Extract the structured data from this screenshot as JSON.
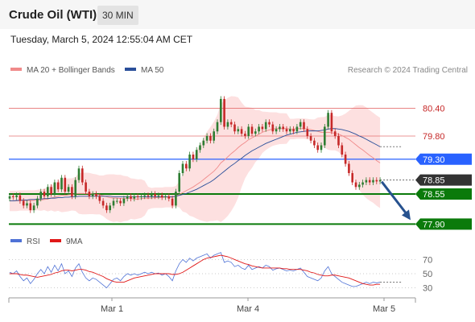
{
  "header": {
    "title": "Crude Oil (WTI)",
    "timeframe": "30 MIN"
  },
  "datetime": "Tuesday, March 5, 2024 12:55:04 AM CET",
  "legend": {
    "ma20_label": "MA 20 + Bollinger Bands",
    "ma50_label": "MA 50",
    "copyright": "Research © 2024 Trading Central",
    "ma20_color": "#f08a8a",
    "ma50_color": "#2a4f9a"
  },
  "rsi_legend": {
    "rsi_label": "RSI",
    "ma9_label": "9MA",
    "rsi_color": "#4f72d6",
    "ma9_color": "#e01818"
  },
  "colors": {
    "up": "#2e7d32",
    "down": "#c62828",
    "band": "#fde0e0",
    "resistance": "#e57373",
    "pivot": "#2962ff",
    "support": "#0b7a0b",
    "current": "#333333",
    "arrow": "#27528f"
  },
  "chart_data": {
    "type": "candlestick",
    "y_range": [
      77.75,
      81.05
    ],
    "x_labels": [
      "Mar 1",
      "Mar 4",
      "Mar 5"
    ],
    "levels": [
      {
        "value": 80.4,
        "label": "80.40",
        "kind": "resistance"
      },
      {
        "value": 79.8,
        "label": "79.80",
        "kind": "resistance"
      },
      {
        "value": 79.3,
        "label": "79.30",
        "kind": "pivot"
      },
      {
        "value": 78.85,
        "label": "78.85",
        "kind": "current"
      },
      {
        "value": 78.55,
        "label": "78.55",
        "kind": "support"
      },
      {
        "value": 77.9,
        "label": "77.90",
        "kind": "support"
      }
    ],
    "forecast": {
      "from": 78.85,
      "to": 77.9
    },
    "closes": [
      78.5,
      78.48,
      78.52,
      78.4,
      78.3,
      78.35,
      78.2,
      78.3,
      78.45,
      78.6,
      78.5,
      78.7,
      78.55,
      78.8,
      78.65,
      78.9,
      78.6,
      78.7,
      78.5,
      78.85,
      79.1,
      78.8,
      78.6,
      78.5,
      78.55,
      78.5,
      78.4,
      78.3,
      78.2,
      78.3,
      78.4,
      78.4,
      78.35,
      78.45,
      78.5,
      78.45,
      78.5,
      78.48,
      78.5,
      78.52,
      78.5,
      78.55,
      78.5,
      78.52,
      78.48,
      78.5,
      78.45,
      78.3,
      78.6,
      79.0,
      79.2,
      79.1,
      79.4,
      79.3,
      79.5,
      79.6,
      79.7,
      79.8,
      79.7,
      79.9,
      80.1,
      80.6,
      80.0,
      80.1,
      80.05,
      79.9,
      79.95,
      79.85,
      79.8,
      80.0,
      79.85,
      79.9,
      80.0,
      79.95,
      80.1,
      80.05,
      79.9,
      79.95,
      80.0,
      79.95,
      79.9,
      79.95,
      79.9,
      80.0,
      80.1,
      79.95,
      79.8,
      79.7,
      79.6,
      79.5,
      79.6,
      80.0,
      80.3,
      79.9,
      79.8,
      79.6,
      79.4,
      79.2,
      79.0,
      78.8,
      78.7,
      78.75,
      78.8,
      78.85,
      78.8,
      78.85,
      78.82,
      78.85
    ],
    "ma20": [
      78.4,
      78.4,
      78.4,
      78.41,
      78.41,
      78.41,
      78.41,
      78.41,
      78.42,
      78.42,
      78.43,
      78.44,
      78.46,
      78.48,
      78.5,
      78.52,
      78.52,
      78.53,
      78.54,
      78.55,
      78.56,
      78.56,
      78.56,
      78.56,
      78.55,
      78.54,
      78.53,
      78.51,
      78.49,
      78.47,
      78.46,
      78.46,
      78.45,
      78.45,
      78.45,
      78.45,
      78.44,
      78.44,
      78.45,
      78.46,
      78.46,
      78.46,
      78.47,
      78.47,
      78.47,
      78.48,
      78.48,
      78.48,
      78.5,
      78.54,
      78.58,
      78.62,
      78.66,
      78.7,
      78.75,
      78.8,
      78.86,
      78.92,
      78.98,
      79.04,
      79.12,
      79.22,
      79.28,
      79.35,
      79.42,
      79.48,
      79.55,
      79.61,
      79.66,
      79.72,
      79.76,
      79.8,
      79.84,
      79.88,
      79.91,
      79.93,
      79.95,
      79.96,
      79.96,
      79.96,
      79.96,
      79.95,
      79.95,
      79.96,
      79.96,
      79.96,
      79.95,
      79.94,
      79.92,
      79.9,
      79.88,
      79.88,
      79.88,
      79.87,
      79.86,
      79.84,
      79.81,
      79.77,
      79.73,
      79.67,
      79.61,
      79.55,
      79.5,
      79.44,
      79.38,
      79.33,
      79.27,
      79.22
    ],
    "ma50": [
      78.4,
      78.4,
      78.41,
      78.41,
      78.42,
      78.42,
      78.43,
      78.43,
      78.44,
      78.44,
      78.45,
      78.45,
      78.46,
      78.46,
      78.47,
      78.47,
      78.48,
      78.48,
      78.49,
      78.49,
      78.5,
      78.5,
      78.5,
      78.5,
      78.5,
      78.5,
      78.5,
      78.5,
      78.5,
      78.5,
      78.49,
      78.49,
      78.49,
      78.49,
      78.49,
      78.49,
      78.49,
      78.49,
      78.49,
      78.49,
      78.49,
      78.49,
      78.49,
      78.49,
      78.49,
      78.49,
      78.49,
      78.49,
      78.5,
      78.52,
      78.54,
      78.56,
      78.59,
      78.62,
      78.65,
      78.69,
      78.73,
      78.77,
      78.81,
      78.86,
      78.92,
      78.98,
      79.04,
      79.1,
      79.16,
      79.21,
      79.27,
      79.32,
      79.38,
      79.43,
      79.48,
      79.52,
      79.56,
      79.6,
      79.64,
      79.67,
      79.7,
      79.73,
      79.76,
      79.79,
      79.82,
      79.84,
      79.86,
      79.88,
      79.89,
      79.9,
      79.91,
      79.91,
      79.91,
      79.91,
      79.92,
      79.93,
      79.95,
      79.96,
      79.96,
      79.95,
      79.94,
      79.92,
      79.9,
      79.87,
      79.84,
      79.8,
      79.77,
      79.73,
      79.69,
      79.65,
      79.61,
      79.57
    ],
    "rsi": [
      52,
      50,
      54,
      46,
      40,
      44,
      36,
      42,
      50,
      56,
      50,
      60,
      52,
      62,
      54,
      64,
      50,
      54,
      46,
      58,
      64,
      52,
      44,
      40,
      44,
      42,
      38,
      34,
      30,
      36,
      42,
      44,
      40,
      46,
      50,
      48,
      50,
      48,
      50,
      52,
      50,
      52,
      50,
      51,
      48,
      50,
      46,
      40,
      54,
      64,
      70,
      66,
      72,
      68,
      72,
      74,
      76,
      78,
      72,
      76,
      78,
      80,
      66,
      68,
      66,
      60,
      62,
      58,
      56,
      62,
      56,
      58,
      60,
      58,
      62,
      60,
      55,
      57,
      58,
      56,
      54,
      55,
      54,
      56,
      58,
      52,
      46,
      44,
      42,
      40,
      44,
      54,
      60,
      50,
      46,
      42,
      38,
      36,
      34,
      32,
      32,
      34,
      36,
      38,
      36,
      38,
      37,
      38
    ],
    "rsi_ma9": [
      50,
      50,
      50,
      49,
      48,
      48,
      47,
      46,
      45,
      46,
      47,
      48,
      49,
      51,
      52,
      54,
      55,
      55,
      54,
      55,
      56,
      56,
      55,
      53,
      52,
      50,
      48,
      46,
      43,
      41,
      39,
      38,
      38,
      38,
      40,
      42,
      44,
      45,
      46,
      47,
      48,
      49,
      50,
      50,
      50,
      50,
      50,
      49,
      49,
      50,
      52,
      55,
      58,
      61,
      64,
      67,
      70,
      72,
      73,
      74,
      75,
      76,
      75,
      74,
      72,
      70,
      68,
      66,
      64,
      63,
      61,
      60,
      59,
      58,
      58,
      58,
      58,
      58,
      58,
      57,
      57,
      56,
      56,
      56,
      56,
      55,
      54,
      52,
      51,
      49,
      48,
      47,
      47,
      48,
      48,
      47,
      46,
      45,
      44,
      42,
      40,
      38,
      36,
      35,
      34,
      34,
      35,
      35
    ],
    "rsi_levels": [
      70,
      50,
      30
    ]
  }
}
